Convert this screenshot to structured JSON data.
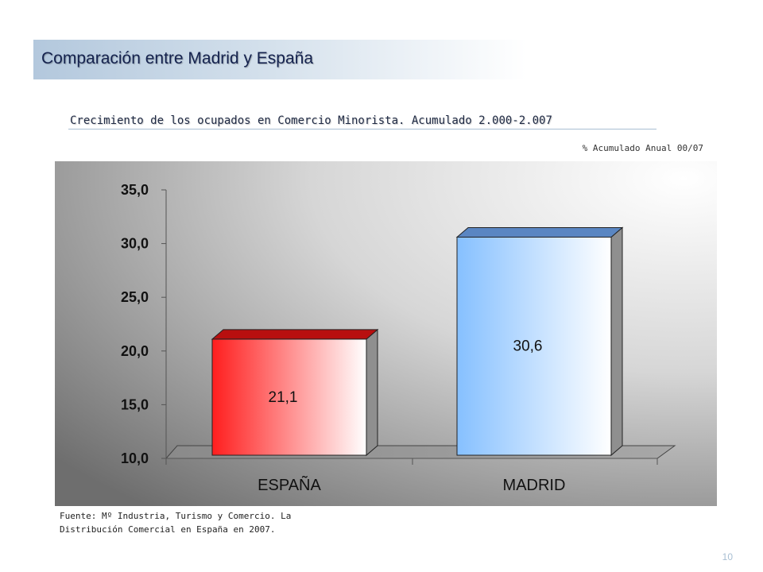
{
  "header": {
    "title": "Comparación entre Madrid y España"
  },
  "chart_data": {
    "type": "bar",
    "title": "Crecimiento de los ocupados en Comercio Minorista. Acumulado 2.000-2.007",
    "units_label": "% Acumulado Anual 00/07",
    "categories": [
      "ESPAÑA",
      "MADRID"
    ],
    "values": [
      21.1,
      30.6
    ],
    "value_labels": [
      "21,1",
      "30,6"
    ],
    "ylim": [
      10,
      35
    ],
    "yticks": [
      10,
      15,
      20,
      25,
      30,
      35
    ],
    "ytick_labels": [
      "10,0",
      "15,0",
      "20,0",
      "25,0",
      "30,0",
      "35,0"
    ],
    "colors": {
      "ESPAÑA": "#ff2020",
      "MADRID": "#8ec4ff"
    },
    "grid": false,
    "legend": "none"
  },
  "footer": {
    "source": "Fuente: Mº Industria, Turismo y Comercio. La Distribución Comercial en España en 2007.",
    "page_number": "10"
  }
}
